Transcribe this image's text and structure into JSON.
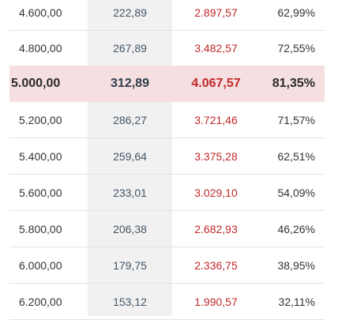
{
  "table": {
    "rows": [
      {
        "amount": "4.600,00",
        "col2": "222,89",
        "col3": "2.897,57",
        "percent": "62,99%"
      },
      {
        "amount": "4.800,00",
        "col2": "267,89",
        "col3": "3.482,57",
        "percent": "72,55%"
      },
      {
        "amount": "5.000,00",
        "col2": "312,89",
        "col3": "4.067,57",
        "percent": "81,35%"
      },
      {
        "amount": "5.200,00",
        "col2": "286,27",
        "col3": "3.721,46",
        "percent": "71,57%"
      },
      {
        "amount": "5.400,00",
        "col2": "259,64",
        "col3": "3.375,28",
        "percent": "62,51%"
      },
      {
        "amount": "5.600,00",
        "col2": "233,01",
        "col3": "3.029,10",
        "percent": "54,09%"
      },
      {
        "amount": "5.800,00",
        "col2": "206,38",
        "col3": "2.682,93",
        "percent": "46,26%"
      },
      {
        "amount": "6.000,00",
        "col2": "179,75",
        "col3": "2.336,75",
        "percent": "38,95%"
      },
      {
        "amount": "6.200,00",
        "col2": "153,12",
        "col3": "1.990,57",
        "percent": "32,11%"
      }
    ],
    "highlighted_row_index": 2,
    "colors": {
      "col2_text": "#445566",
      "col3_text": "#c0282a",
      "highlight_band": "#f6dfe0",
      "shaded_column": "#f1f1f1"
    }
  }
}
